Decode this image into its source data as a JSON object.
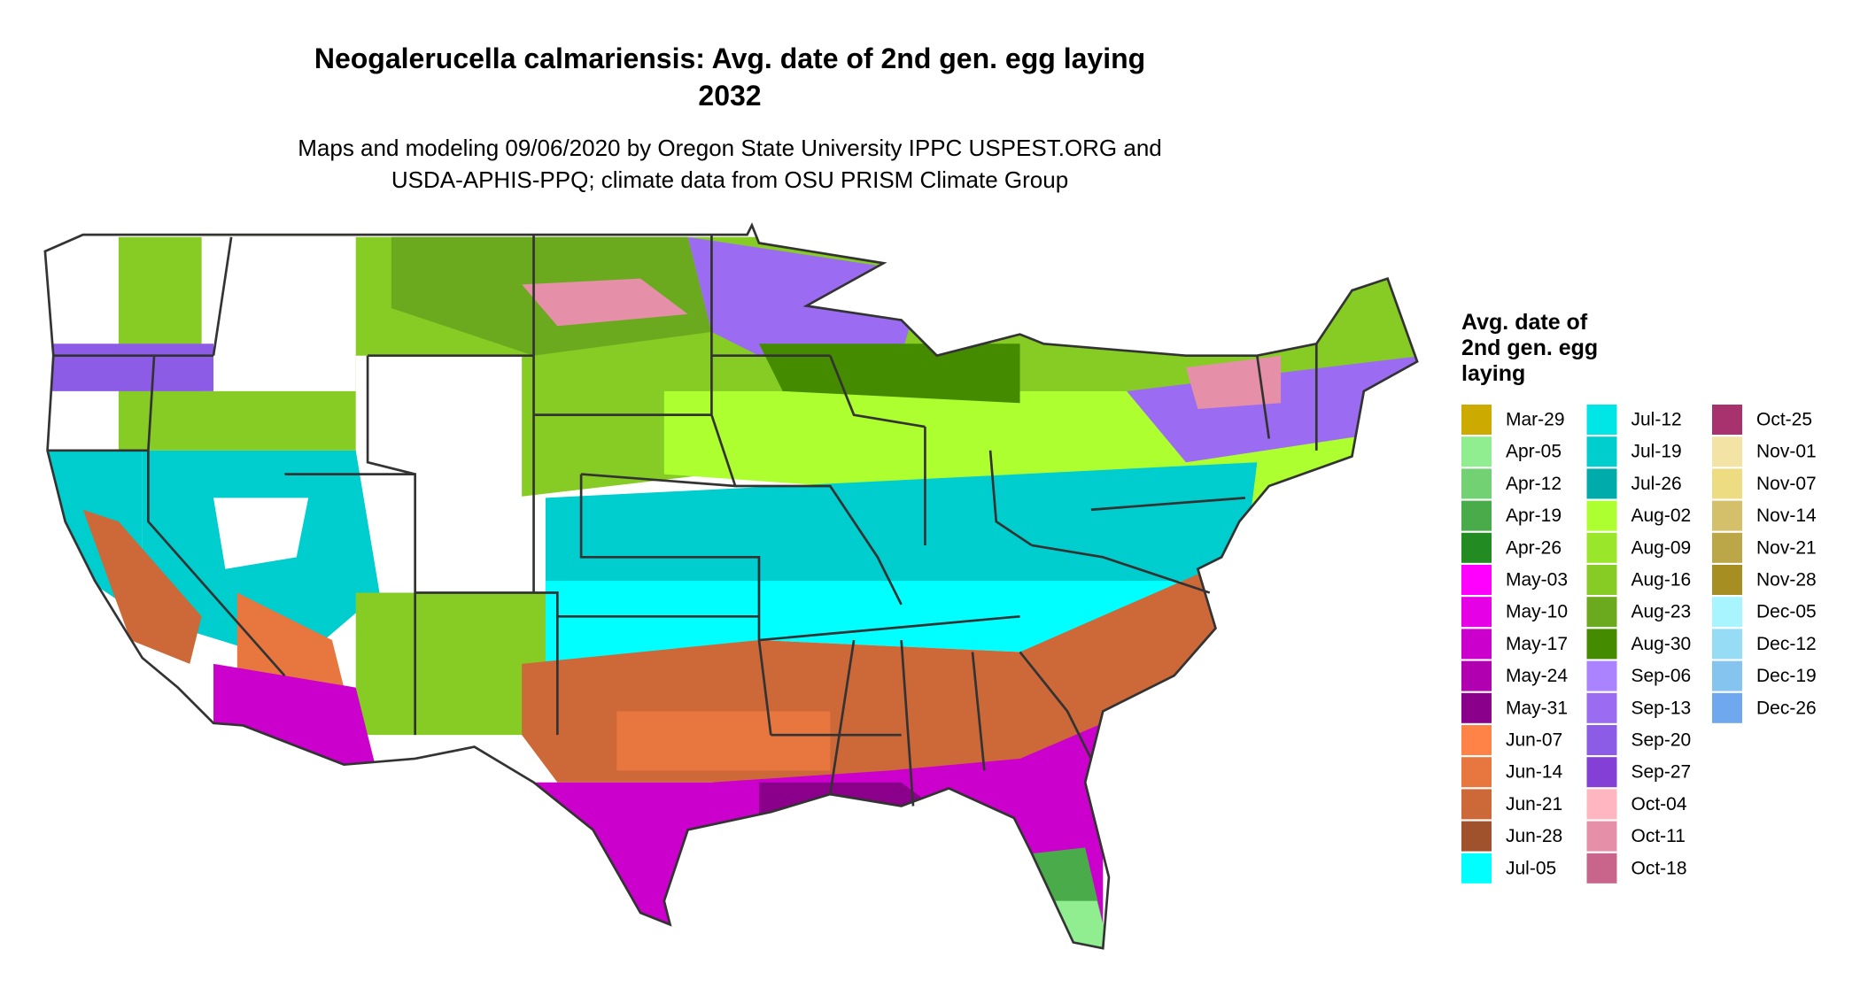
{
  "title": "Neogalerucella calmariensis: Avg. date of 2nd gen. egg laying",
  "year": "2032",
  "subtitle_lines": [
    "Maps and modeling 09/06/2020 by Oregon State University IPPC USPEST.ORG and",
    "USDA-APHIS-PPQ; climate data from OSU PRISM Climate Group"
  ],
  "legend": {
    "title": "Avg. date of 2nd gen. egg laying",
    "items": [
      {
        "label": "Mar-29",
        "color": "#cdaa00"
      },
      {
        "label": "Apr-05",
        "color": "#90ee90"
      },
      {
        "label": "Apr-12",
        "color": "#72d172"
      },
      {
        "label": "Apr-19",
        "color": "#4aab4a"
      },
      {
        "label": "Apr-26",
        "color": "#228b22"
      },
      {
        "label": "May-03",
        "color": "#ff00ff"
      },
      {
        "label": "May-10",
        "color": "#e600e6"
      },
      {
        "label": "May-17",
        "color": "#cc00cc"
      },
      {
        "label": "May-24",
        "color": "#b000b0"
      },
      {
        "label": "May-31",
        "color": "#8b008b"
      },
      {
        "label": "Jun-07",
        "color": "#ff8247"
      },
      {
        "label": "Jun-14",
        "color": "#e8763f"
      },
      {
        "label": "Jun-21",
        "color": "#cd6839"
      },
      {
        "label": "Jun-28",
        "color": "#a0522d"
      },
      {
        "label": "Jul-05",
        "color": "#00ffff"
      },
      {
        "label": "Jul-12",
        "color": "#00e5e5"
      },
      {
        "label": "Jul-19",
        "color": "#00cdcd"
      },
      {
        "label": "Jul-26",
        "color": "#00abab"
      },
      {
        "label": "Aug-02",
        "color": "#adff2f"
      },
      {
        "label": "Aug-09",
        "color": "#9ae62a"
      },
      {
        "label": "Aug-16",
        "color": "#86cc25"
      },
      {
        "label": "Aug-23",
        "color": "#6baa1e"
      },
      {
        "label": "Aug-30",
        "color": "#458b00"
      },
      {
        "label": "Sep-06",
        "color": "#ab82ff"
      },
      {
        "label": "Sep-13",
        "color": "#9b6cf2"
      },
      {
        "label": "Sep-20",
        "color": "#8d5ce6"
      },
      {
        "label": "Sep-27",
        "color": "#843fd6"
      },
      {
        "label": "Oct-04",
        "color": "#ffb6c1"
      },
      {
        "label": "Oct-11",
        "color": "#e58fa8"
      },
      {
        "label": "Oct-18",
        "color": "#c9658a"
      },
      {
        "label": "Oct-25",
        "color": "#a8326e"
      },
      {
        "label": "Nov-01",
        "color": "#f3e4a6"
      },
      {
        "label": "Nov-07",
        "color": "#eedc82"
      },
      {
        "label": "Nov-14",
        "color": "#d4c06a"
      },
      {
        "label": "Nov-21",
        "color": "#bca748"
      },
      {
        "label": "Nov-28",
        "color": "#a68e22"
      },
      {
        "label": "Dec-05",
        "color": "#a8f4ff"
      },
      {
        "label": "Dec-12",
        "color": "#97dcf5"
      },
      {
        "label": "Dec-19",
        "color": "#86c4f0"
      },
      {
        "label": "Dec-26",
        "color": "#6fa8ee"
      }
    ]
  }
}
